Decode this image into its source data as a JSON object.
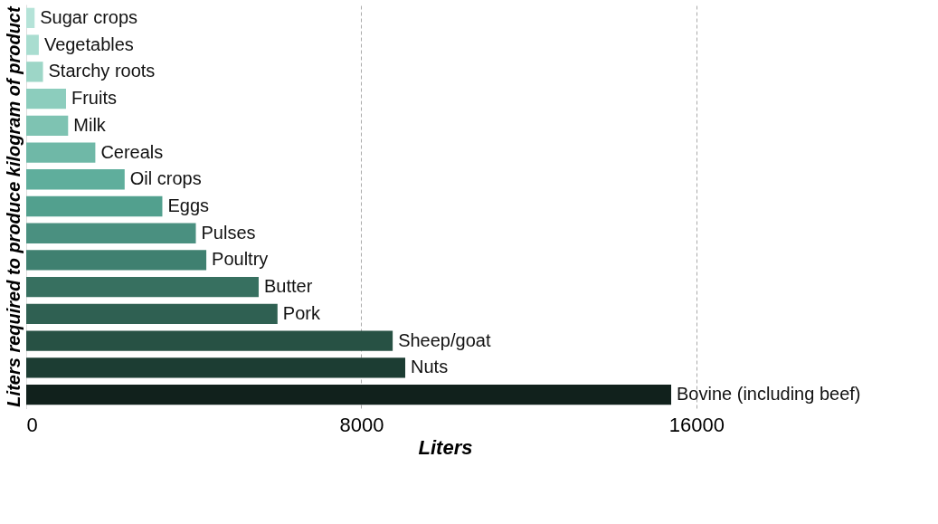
{
  "chart_data": {
    "type": "bar",
    "orientation": "horizontal",
    "xlabel": "Liters",
    "ylabel": "Liters required to produce kilogram of product",
    "categories": [
      "Sugar crops",
      "Vegetables",
      "Starchy roots",
      "Fruits",
      "Milk",
      "Cereals",
      "Oil crops",
      "Eggs",
      "Pulses",
      "Poultry",
      "Butter",
      "Pork",
      "Sheep/goat",
      "Nuts",
      "Bovine (including beef)"
    ],
    "values": [
      200,
      300,
      400,
      950,
      1000,
      1650,
      2350,
      3250,
      4050,
      4300,
      5550,
      6000,
      8750,
      9050,
      15400
    ],
    "colors": [
      "#b5e3d8",
      "#a9ddd0",
      "#9dd6c7",
      "#8ccdbd",
      "#7ec3b2",
      "#6fb8a7",
      "#5fae9c",
      "#52a08e",
      "#4a9080",
      "#3f8070",
      "#377060",
      "#2f6052",
      "#275144",
      "#1c3d33",
      "#11211c"
    ],
    "xlim": [
      0,
      20000
    ],
    "xticks": [
      0,
      8000,
      16000
    ],
    "grid": "x",
    "tick_labels": "x"
  }
}
